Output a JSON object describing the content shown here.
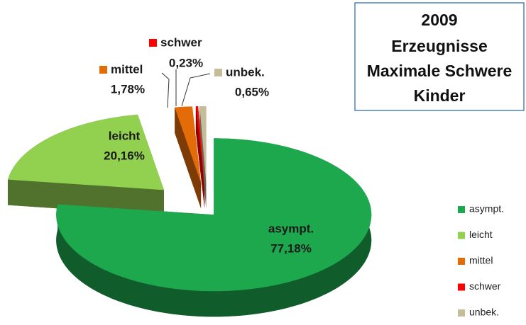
{
  "chart_data": {
    "type": "pie",
    "title": [
      "2009",
      "Erzeugnisse",
      "Maximale Schwere",
      "Kinder"
    ],
    "categories": [
      "asympt.",
      "leicht",
      "mittel",
      "schwer",
      "unbek."
    ],
    "values": [
      77.18,
      20.16,
      1.78,
      0.23,
      0.65
    ],
    "value_labels": [
      "77,18%",
      "20,16%",
      "1,78%",
      "0,23%",
      "0,65%"
    ],
    "colors": [
      "#1ea84e",
      "#92d050",
      "#e36c09",
      "#ff0000",
      "#c4bd97"
    ],
    "legend": "right"
  }
}
